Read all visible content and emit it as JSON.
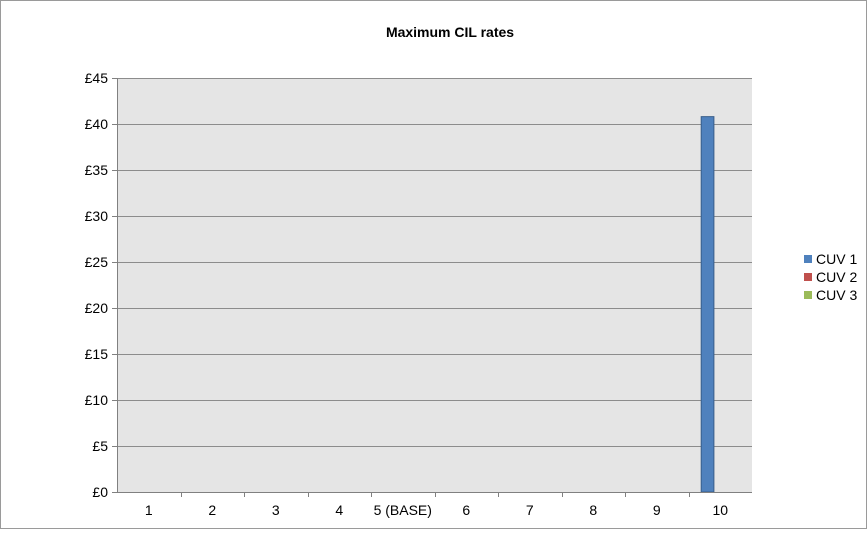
{
  "chart_data": {
    "type": "bar",
    "title": "Maximum CIL rates",
    "xlabel": "",
    "ylabel": "",
    "categories": [
      "1",
      "2",
      "3",
      "4",
      "5 (BASE)",
      "6",
      "7",
      "8",
      "9",
      "10"
    ],
    "series": [
      {
        "name": "CUV 1",
        "color": "#4f81bd",
        "values": [
          0,
          0,
          0,
          0,
          0,
          0,
          0,
          0,
          0,
          40.8
        ]
      },
      {
        "name": "CUV 2",
        "color": "#c0504d",
        "values": [
          0,
          0,
          0,
          0,
          0,
          0,
          0,
          0,
          0,
          0
        ]
      },
      {
        "name": "CUV 3",
        "color": "#9bbb59",
        "values": [
          0,
          0,
          0,
          0,
          0,
          0,
          0,
          0,
          0,
          0
        ]
      }
    ],
    "ylim": [
      0,
      45
    ],
    "y_ticks": [
      0,
      5,
      10,
      15,
      20,
      25,
      30,
      35,
      40,
      45
    ],
    "y_tick_labels": [
      "£0",
      "£5",
      "£10",
      "£15",
      "£20",
      "£25",
      "£30",
      "£35",
      "£40",
      "£45"
    ],
    "grid": true,
    "legend_position": "right",
    "plot_background": "#e5e5e5",
    "gridline_color": "#8c8c8c"
  }
}
